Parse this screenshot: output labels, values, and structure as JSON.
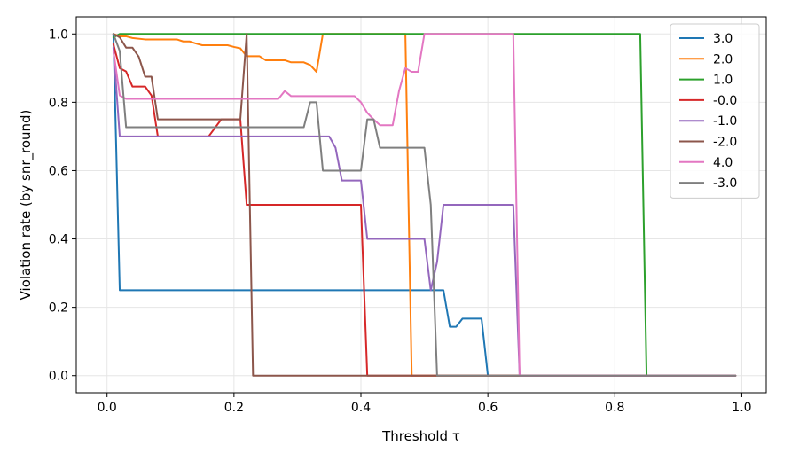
{
  "chart_data": {
    "type": "line",
    "xlabel": "Threshold τ",
    "ylabel": "Violation rate (by snr_round)",
    "xlim": [
      -0.0485,
      1.0385
    ],
    "ylim": [
      -0.05,
      1.05
    ],
    "xticks": [
      0.0,
      0.2,
      0.4,
      0.6,
      0.8,
      1.0
    ],
    "xtick_labels": [
      "0.0",
      "0.2",
      "0.4",
      "0.6",
      "0.8",
      "1.0"
    ],
    "yticks": [
      0.0,
      0.2,
      0.4,
      0.6,
      0.8,
      1.0
    ],
    "ytick_labels": [
      "0.0",
      "0.2",
      "0.4",
      "0.6",
      "0.8",
      "1.0"
    ],
    "grid": true,
    "legend_position": "top-right",
    "series": [
      {
        "name": "3.0",
        "color": "#1f77b4",
        "points": [
          [
            0.01,
            1.0
          ],
          [
            0.02,
            0.25
          ],
          [
            0.53,
            0.25
          ],
          [
            0.54,
            0.143
          ],
          [
            0.55,
            0.143
          ],
          [
            0.56,
            0.167
          ],
          [
            0.59,
            0.167
          ],
          [
            0.6,
            0.0
          ],
          [
            0.99,
            0.0
          ]
        ]
      },
      {
        "name": "2.0",
        "color": "#ff7f0e",
        "points": [
          [
            0.01,
            1.0
          ],
          [
            0.02,
            0.993
          ],
          [
            0.03,
            0.993
          ],
          [
            0.04,
            0.988
          ],
          [
            0.06,
            0.984
          ],
          [
            0.11,
            0.984
          ],
          [
            0.12,
            0.978
          ],
          [
            0.13,
            0.978
          ],
          [
            0.14,
            0.972
          ],
          [
            0.15,
            0.967
          ],
          [
            0.19,
            0.967
          ],
          [
            0.2,
            0.962
          ],
          [
            0.21,
            0.958
          ],
          [
            0.22,
            0.935
          ],
          [
            0.24,
            0.935
          ],
          [
            0.25,
            0.923
          ],
          [
            0.28,
            0.923
          ],
          [
            0.29,
            0.917
          ],
          [
            0.31,
            0.917
          ],
          [
            0.32,
            0.909
          ],
          [
            0.33,
            0.889
          ],
          [
            0.34,
            1.0
          ],
          [
            0.47,
            1.0
          ],
          [
            0.48,
            0.0
          ],
          [
            0.99,
            0.0
          ]
        ]
      },
      {
        "name": "1.0",
        "color": "#2ca02c",
        "points": [
          [
            0.01,
            0.99
          ],
          [
            0.02,
            1.0
          ],
          [
            0.84,
            1.0
          ],
          [
            0.85,
            0.0
          ],
          [
            0.99,
            0.0
          ]
        ]
      },
      {
        "name": "-0.0",
        "color": "#d62728",
        "points": [
          [
            0.01,
            0.97
          ],
          [
            0.02,
            0.9
          ],
          [
            0.03,
            0.89
          ],
          [
            0.04,
            0.846
          ],
          [
            0.06,
            0.846
          ],
          [
            0.07,
            0.82
          ],
          [
            0.08,
            0.7
          ],
          [
            0.16,
            0.7
          ],
          [
            0.18,
            0.75
          ],
          [
            0.21,
            0.75
          ],
          [
            0.22,
            0.5
          ],
          [
            0.4,
            0.5
          ],
          [
            0.41,
            0.0
          ],
          [
            0.99,
            0.0
          ]
        ]
      },
      {
        "name": "-1.0",
        "color": "#9467bd",
        "points": [
          [
            0.01,
            0.96
          ],
          [
            0.02,
            0.7
          ],
          [
            0.35,
            0.7
          ],
          [
            0.36,
            0.667
          ],
          [
            0.37,
            0.571
          ],
          [
            0.4,
            0.571
          ],
          [
            0.41,
            0.4
          ],
          [
            0.5,
            0.4
          ],
          [
            0.51,
            0.25
          ],
          [
            0.52,
            0.333
          ],
          [
            0.53,
            0.5
          ],
          [
            0.64,
            0.5
          ],
          [
            0.65,
            0.0
          ],
          [
            0.99,
            0.0
          ]
        ]
      },
      {
        "name": "-2.0",
        "color": "#8c564b",
        "points": [
          [
            0.01,
            1.0
          ],
          [
            0.02,
            0.99
          ],
          [
            0.03,
            0.96
          ],
          [
            0.04,
            0.96
          ],
          [
            0.05,
            0.933
          ],
          [
            0.06,
            0.875
          ],
          [
            0.07,
            0.875
          ],
          [
            0.08,
            0.75
          ],
          [
            0.21,
            0.75
          ],
          [
            0.22,
            1.0
          ],
          [
            0.23,
            0.0
          ],
          [
            0.99,
            0.0
          ]
        ]
      },
      {
        "name": "4.0",
        "color": "#e377c2",
        "points": [
          [
            0.01,
            0.95
          ],
          [
            0.02,
            0.82
          ],
          [
            0.03,
            0.81
          ],
          [
            0.27,
            0.81
          ],
          [
            0.28,
            0.833
          ],
          [
            0.29,
            0.818
          ],
          [
            0.39,
            0.818
          ],
          [
            0.4,
            0.8
          ],
          [
            0.41,
            0.769
          ],
          [
            0.42,
            0.75
          ],
          [
            0.43,
            0.733
          ],
          [
            0.45,
            0.733
          ],
          [
            0.46,
            0.833
          ],
          [
            0.47,
            0.9
          ],
          [
            0.48,
            0.889
          ],
          [
            0.49,
            0.889
          ],
          [
            0.5,
            1.0
          ],
          [
            0.64,
            1.0
          ],
          [
            0.65,
            0.0
          ],
          [
            0.99,
            0.0
          ]
        ]
      },
      {
        "name": "-3.0",
        "color": "#7f7f7f",
        "points": [
          [
            0.01,
            1.0
          ],
          [
            0.02,
            0.95
          ],
          [
            0.03,
            0.727
          ],
          [
            0.31,
            0.727
          ],
          [
            0.32,
            0.8
          ],
          [
            0.33,
            0.8
          ],
          [
            0.34,
            0.6
          ],
          [
            0.4,
            0.6
          ],
          [
            0.41,
            0.75
          ],
          [
            0.42,
            0.75
          ],
          [
            0.43,
            0.667
          ],
          [
            0.5,
            0.667
          ],
          [
            0.51,
            0.5
          ],
          [
            0.52,
            0.0
          ],
          [
            0.99,
            0.0
          ]
        ]
      }
    ]
  }
}
